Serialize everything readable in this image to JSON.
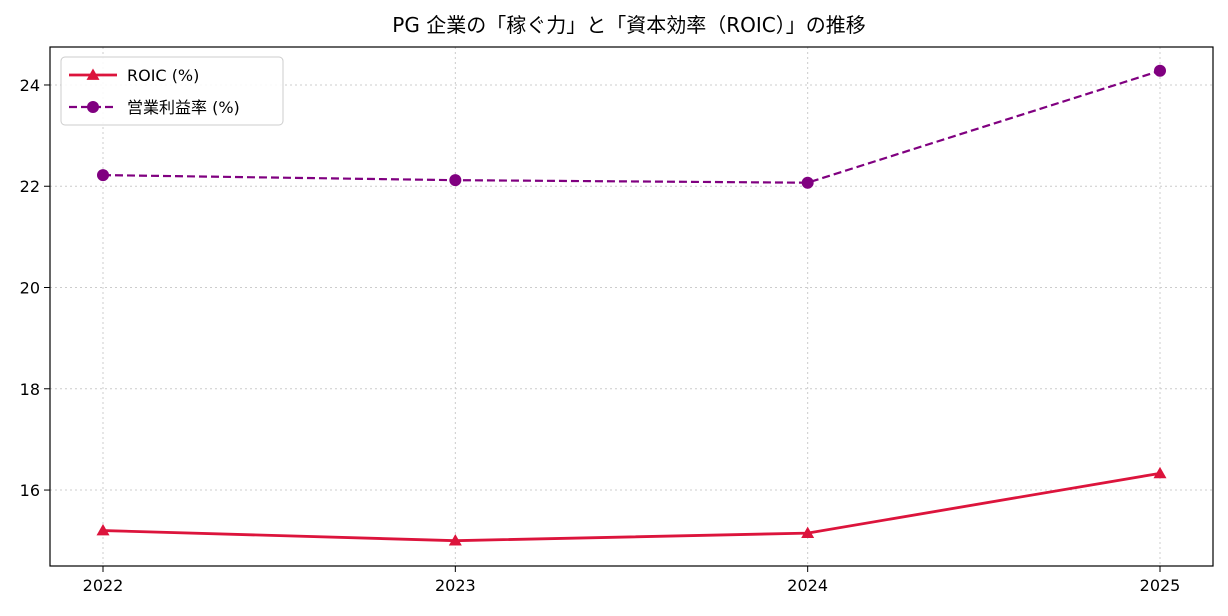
{
  "chart_data": {
    "type": "line",
    "title": "PG 企業の「稼ぐ力」と「資本効率（ROIC）」の推移",
    "xlabel": "",
    "ylabel": "",
    "categories": [
      "2022",
      "2023",
      "2024",
      "2025"
    ],
    "ylim": [
      14.5,
      24.75
    ],
    "yticks": [
      16,
      18,
      20,
      22,
      24
    ],
    "grid": true,
    "legend_position": "top-left",
    "series": [
      {
        "name": "ROIC (%)",
        "values": [
          15.2,
          15.0,
          15.15,
          16.33
        ],
        "color": "#dc143c",
        "line_style": "solid",
        "marker": "triangle"
      },
      {
        "name": "営業利益率 (%)",
        "values": [
          22.22,
          22.12,
          22.07,
          24.28
        ],
        "color": "#800080",
        "line_style": "dashed",
        "marker": "circle"
      }
    ]
  }
}
